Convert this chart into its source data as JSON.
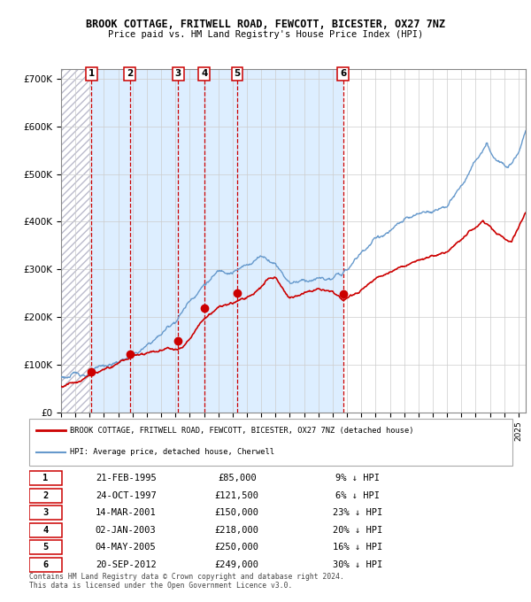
{
  "title": "BROOK COTTAGE, FRITWELL ROAD, FEWCOTT, BICESTER, OX27 7NZ",
  "subtitle": "Price paid vs. HM Land Registry's House Price Index (HPI)",
  "xlim_start": 1993.0,
  "xlim_end": 2025.5,
  "ylim": [
    0,
    720000
  ],
  "yticks": [
    0,
    100000,
    200000,
    300000,
    400000,
    500000,
    600000,
    700000
  ],
  "ytick_labels": [
    "£0",
    "£100K",
    "£200K",
    "£300K",
    "£400K",
    "£500K",
    "£600K",
    "£700K"
  ],
  "sale_points": [
    {
      "num": 1,
      "year": 1995.13,
      "price": 85000,
      "label": "1"
    },
    {
      "num": 2,
      "year": 1997.81,
      "price": 121500,
      "label": "2"
    },
    {
      "num": 3,
      "year": 2001.19,
      "price": 150000,
      "label": "3"
    },
    {
      "num": 4,
      "year": 2003.01,
      "price": 218000,
      "label": "4"
    },
    {
      "num": 5,
      "year": 2005.33,
      "price": 250000,
      "label": "5"
    },
    {
      "num": 6,
      "year": 2012.72,
      "price": 249000,
      "label": "6"
    }
  ],
  "vline_years": [
    1995.13,
    1997.81,
    2001.19,
    2003.01,
    2005.33,
    2012.72
  ],
  "shade_region": [
    1995.13,
    2012.72
  ],
  "legend_entries": [
    {
      "label": "BROOK COTTAGE, FRITWELL ROAD, FEWCOTT, BICESTER, OX27 7NZ (detached house)",
      "color": "#cc0000",
      "lw": 2.0
    },
    {
      "label": "HPI: Average price, detached house, Cherwell",
      "color": "#6699cc",
      "lw": 1.5
    }
  ],
  "table_rows": [
    {
      "num": "1",
      "date": "21-FEB-1995",
      "price": "£85,000",
      "pct": "9% ↓ HPI"
    },
    {
      "num": "2",
      "date": "24-OCT-1997",
      "price": "£121,500",
      "pct": "6% ↓ HPI"
    },
    {
      "num": "3",
      "date": "14-MAR-2001",
      "price": "£150,000",
      "pct": "23% ↓ HPI"
    },
    {
      "num": "4",
      "date": "02-JAN-2003",
      "price": "£218,000",
      "pct": "20% ↓ HPI"
    },
    {
      "num": "5",
      "date": "04-MAY-2005",
      "price": "£250,000",
      "pct": "16% ↓ HPI"
    },
    {
      "num": "6",
      "date": "20-SEP-2012",
      "price": "£249,000",
      "pct": "30% ↓ HPI"
    }
  ],
  "footer": "Contains HM Land Registry data © Crown copyright and database right 2024.\nThis data is licensed under the Open Government Licence v3.0.",
  "hpi_color": "#6699cc",
  "sale_color": "#cc0000",
  "shade_color": "#ddeeff",
  "grid_color": "#cccccc",
  "vline_color": "#cc0000",
  "hpi_anchors": [
    [
      1993.0,
      73000
    ],
    [
      1994.0,
      78000
    ],
    [
      1995.0,
      83000
    ],
    [
      1996.0,
      91000
    ],
    [
      1997.0,
      100000
    ],
    [
      1998.0,
      115000
    ],
    [
      1999.0,
      130000
    ],
    [
      2000.0,
      155000
    ],
    [
      2001.0,
      185000
    ],
    [
      2002.0,
      230000
    ],
    [
      2003.0,
      270000
    ],
    [
      2004.0,
      295000
    ],
    [
      2005.0,
      305000
    ],
    [
      2006.0,
      315000
    ],
    [
      2007.0,
      340000
    ],
    [
      2008.0,
      330000
    ],
    [
      2009.0,
      295000
    ],
    [
      2010.0,
      305000
    ],
    [
      2011.0,
      310000
    ],
    [
      2012.0,
      305000
    ],
    [
      2013.0,
      320000
    ],
    [
      2014.0,
      355000
    ],
    [
      2015.0,
      385000
    ],
    [
      2016.0,
      400000
    ],
    [
      2017.0,
      415000
    ],
    [
      2018.0,
      420000
    ],
    [
      2019.0,
      430000
    ],
    [
      2020.0,
      445000
    ],
    [
      2021.0,
      480000
    ],
    [
      2022.0,
      530000
    ],
    [
      2022.8,
      560000
    ],
    [
      2023.0,
      545000
    ],
    [
      2023.5,
      520000
    ],
    [
      2024.0,
      515000
    ],
    [
      2024.5,
      530000
    ],
    [
      2025.0,
      560000
    ],
    [
      2025.5,
      610000
    ]
  ],
  "sale_anchors": [
    [
      1993.0,
      55000
    ],
    [
      1994.5,
      70000
    ],
    [
      1995.13,
      85000
    ],
    [
      1996.0,
      95000
    ],
    [
      1997.0,
      108000
    ],
    [
      1997.81,
      121500
    ],
    [
      1998.5,
      128000
    ],
    [
      1999.5,
      140000
    ],
    [
      2000.5,
      148000
    ],
    [
      2001.19,
      150000
    ],
    [
      2001.5,
      158000
    ],
    [
      2002.0,
      175000
    ],
    [
      2002.5,
      195000
    ],
    [
      2003.01,
      218000
    ],
    [
      2003.5,
      230000
    ],
    [
      2004.0,
      240000
    ],
    [
      2004.5,
      245000
    ],
    [
      2005.33,
      250000
    ],
    [
      2005.8,
      255000
    ],
    [
      2006.5,
      265000
    ],
    [
      2007.0,
      280000
    ],
    [
      2007.5,
      295000
    ],
    [
      2008.0,
      295000
    ],
    [
      2008.5,
      275000
    ],
    [
      2009.0,
      255000
    ],
    [
      2009.5,
      258000
    ],
    [
      2010.0,
      265000
    ],
    [
      2010.5,
      270000
    ],
    [
      2011.0,
      275000
    ],
    [
      2011.5,
      272000
    ],
    [
      2012.0,
      268000
    ],
    [
      2012.72,
      249000
    ],
    [
      2013.0,
      255000
    ],
    [
      2013.5,
      262000
    ],
    [
      2014.0,
      272000
    ],
    [
      2015.0,
      290000
    ],
    [
      2016.0,
      308000
    ],
    [
      2017.0,
      322000
    ],
    [
      2018.0,
      330000
    ],
    [
      2019.0,
      335000
    ],
    [
      2020.0,
      340000
    ],
    [
      2021.0,
      358000
    ],
    [
      2022.0,
      385000
    ],
    [
      2022.5,
      400000
    ],
    [
      2023.0,
      390000
    ],
    [
      2023.5,
      375000
    ],
    [
      2024.0,
      365000
    ],
    [
      2024.5,
      360000
    ],
    [
      2025.0,
      390000
    ],
    [
      2025.5,
      420000
    ]
  ]
}
